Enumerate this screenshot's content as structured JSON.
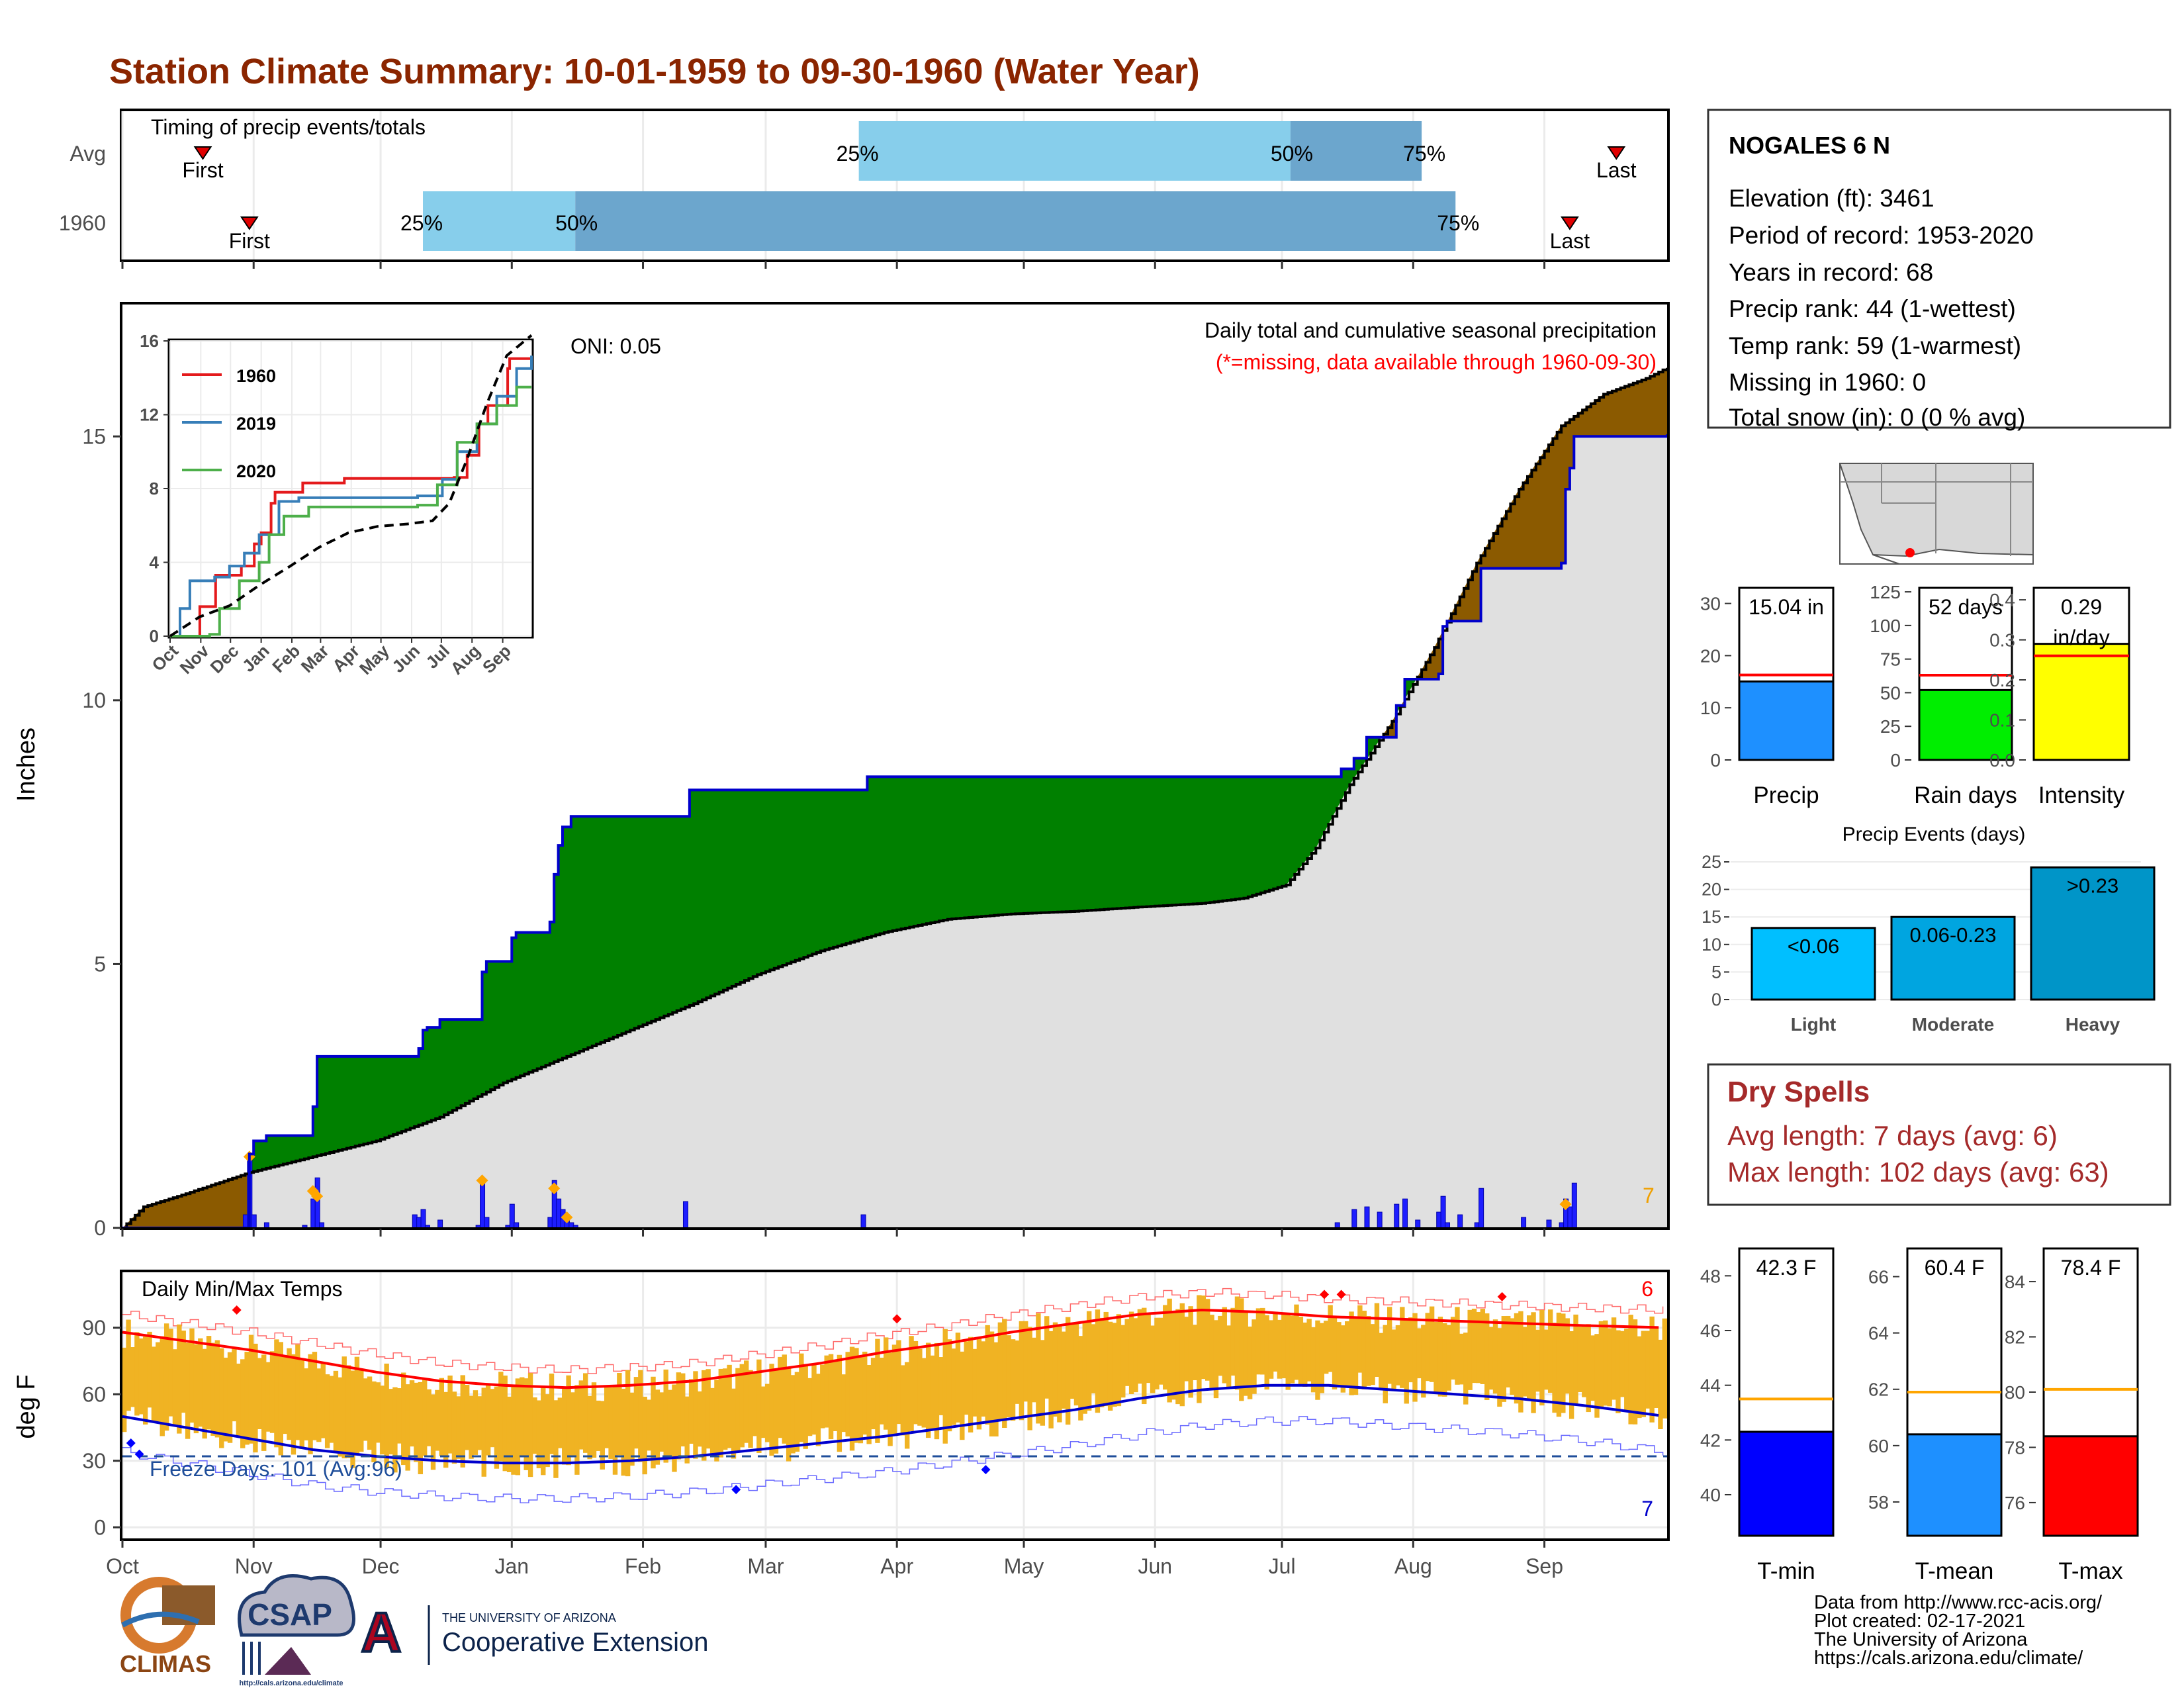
{
  "title": "Station Climate Summary: 10-01-1959 to 09-30-1960 (Water Year)",
  "colors": {
    "title": "#8B2500",
    "above_avg": "#8B5A00",
    "below_avg": "#008000",
    "avg_area": "#E0E0E0",
    "cum_line": "#0000CC",
    "light_blue": "#87CEEB",
    "mid_blue": "#6CA6CD",
    "temp_bar": "#F0B323",
    "tmax_line": "#FF0000",
    "tmin_line": "#0000CC",
    "dry_spell": "#A52A2A"
  },
  "months": [
    "Oct",
    "Nov",
    "Dec",
    "Jan",
    "Feb",
    "Mar",
    "Apr",
    "May",
    "Jun",
    "Jul",
    "Aug",
    "Sep"
  ],
  "timing": {
    "title": "Timing of precip events/totals",
    "rows": [
      {
        "label": "Avg",
        "first_day": 19,
        "last_day": 353,
        "q25_day": 174,
        "q50_day": 276,
        "q75_day": 307,
        "p25": "25%",
        "p50": "50%",
        "p75": "75%",
        "first_label": "First",
        "last_label": "Last"
      },
      {
        "label": "1960",
        "first_day": 30,
        "last_day": 342,
        "q25_day": 71,
        "q50_day": 107,
        "q75_day": 315,
        "p25": "25%",
        "p50": "50%",
        "p75": "75%",
        "first_label": "First",
        "last_label": "Last"
      }
    ]
  },
  "precip_panel": {
    "ylabel": "Inches",
    "yticks": [
      0,
      5,
      10,
      15
    ],
    "ylim": [
      0,
      17.5
    ],
    "note1": "Daily total and cumulative seasonal precipitation",
    "note2": "(*=missing, data available through 1960-09-30)",
    "oni": "ONI: 0.05",
    "corner_count": "7"
  },
  "chart_data": [
    {
      "type": "area",
      "name": "Cumulative precipitation WY1960 vs average",
      "x_unit": "day of water year",
      "cumulative_1960": [
        [
          0,
          0
        ],
        [
          29,
          0
        ],
        [
          30,
          1.4
        ],
        [
          31,
          1.65
        ],
        [
          34,
          1.75
        ],
        [
          44,
          1.75
        ],
        [
          45,
          2.3
        ],
        [
          46,
          3.25
        ],
        [
          69,
          3.25
        ],
        [
          70,
          3.4
        ],
        [
          71,
          3.75
        ],
        [
          72,
          3.8
        ],
        [
          75,
          3.95
        ],
        [
          84,
          3.95
        ],
        [
          85,
          4.85
        ],
        [
          86,
          5.05
        ],
        [
          91,
          5.05
        ],
        [
          92,
          5.5
        ],
        [
          93,
          5.6
        ],
        [
          100,
          5.6
        ],
        [
          101,
          5.8
        ],
        [
          102,
          6.7
        ],
        [
          103,
          7.25
        ],
        [
          104,
          7.6
        ],
        [
          106,
          7.8
        ],
        [
          133,
          7.8
        ],
        [
          134,
          8.3
        ],
        [
          175,
          8.3
        ],
        [
          176,
          8.55
        ],
        [
          287,
          8.55
        ],
        [
          288,
          8.7
        ],
        [
          291,
          8.9
        ],
        [
          294,
          9.3
        ],
        [
          301,
          9.9
        ],
        [
          303,
          10.4
        ],
        [
          311,
          10.5
        ],
        [
          312,
          11.4
        ],
        [
          313,
          11.5
        ],
        [
          320,
          11.5
        ],
        [
          321,
          12.5
        ],
        [
          340,
          12.6
        ],
        [
          341,
          14.0
        ],
        [
          342,
          14.4
        ],
        [
          343,
          15.0
        ],
        [
          365,
          15.04
        ]
      ],
      "cumulative_avg": [
        [
          0,
          0
        ],
        [
          5,
          0.4
        ],
        [
          15,
          0.65
        ],
        [
          30,
          1.05
        ],
        [
          45,
          1.35
        ],
        [
          60,
          1.65
        ],
        [
          75,
          2.1
        ],
        [
          90,
          2.75
        ],
        [
          105,
          3.25
        ],
        [
          120,
          3.75
        ],
        [
          135,
          4.25
        ],
        [
          150,
          4.8
        ],
        [
          165,
          5.25
        ],
        [
          180,
          5.6
        ],
        [
          195,
          5.85
        ],
        [
          210,
          5.95
        ],
        [
          225,
          6.0
        ],
        [
          240,
          6.08
        ],
        [
          255,
          6.15
        ],
        [
          265,
          6.25
        ],
        [
          275,
          6.5
        ],
        [
          282,
          7.2
        ],
        [
          290,
          8.4
        ],
        [
          300,
          9.6
        ],
        [
          310,
          11.0
        ],
        [
          320,
          12.6
        ],
        [
          330,
          14.0
        ],
        [
          340,
          15.2
        ],
        [
          350,
          15.8
        ],
        [
          360,
          16.1
        ],
        [
          365,
          16.3
        ]
      ],
      "daily_1960": [
        [
          29,
          0.25
        ],
        [
          30,
          1.4
        ],
        [
          31,
          0.25
        ],
        [
          34,
          0.1
        ],
        [
          43,
          0.05
        ],
        [
          45,
          0.55
        ],
        [
          46,
          0.95
        ],
        [
          47,
          0.1
        ],
        [
          69,
          0.25
        ],
        [
          70,
          0.2
        ],
        [
          71,
          0.35
        ],
        [
          72,
          0.05
        ],
        [
          75,
          0.15
        ],
        [
          84,
          0.05
        ],
        [
          85,
          0.9
        ],
        [
          86,
          0.2
        ],
        [
          91,
          0.05
        ],
        [
          92,
          0.45
        ],
        [
          93,
          0.1
        ],
        [
          101,
          0.2
        ],
        [
          102,
          0.9
        ],
        [
          103,
          0.55
        ],
        [
          104,
          0.35
        ],
        [
          105,
          0.2
        ],
        [
          106,
          0.1
        ],
        [
          107,
          0.05
        ],
        [
          133,
          0.5
        ],
        [
          175,
          0.25
        ],
        [
          287,
          0.1
        ],
        [
          291,
          0.35
        ],
        [
          294,
          0.4
        ],
        [
          297,
          0.3
        ],
        [
          301,
          0.45
        ],
        [
          303,
          0.55
        ],
        [
          306,
          0.15
        ],
        [
          311,
          0.3
        ],
        [
          312,
          0.6
        ],
        [
          313,
          0.1
        ],
        [
          316,
          0.25
        ],
        [
          320,
          0.1
        ],
        [
          321,
          0.75
        ],
        [
          331,
          0.2
        ],
        [
          337,
          0.15
        ],
        [
          340,
          0.1
        ],
        [
          341,
          0.55
        ],
        [
          342,
          0.4
        ],
        [
          343,
          0.85
        ]
      ],
      "ylim": [
        0,
        17.5
      ]
    },
    {
      "type": "line",
      "name": "Inset cumulative comparison",
      "ylim": [
        0,
        16
      ],
      "yticks": [
        0,
        4,
        8,
        12,
        16
      ],
      "series": [
        {
          "name": "1960",
          "color": "#E41A1C",
          "values": [
            [
              0,
              0
            ],
            [
              30,
              1.6
            ],
            [
              46,
              3.3
            ],
            [
              72,
              3.8
            ],
            [
              85,
              5.0
            ],
            [
              92,
              5.6
            ],
            [
              102,
              7.2
            ],
            [
              106,
              7.8
            ],
            [
              134,
              8.3
            ],
            [
              176,
              8.55
            ],
            [
              287,
              8.6
            ],
            [
              300,
              9.8
            ],
            [
              312,
              11.5
            ],
            [
              321,
              12.5
            ],
            [
              341,
              14.5
            ],
            [
              343,
              15.04
            ],
            [
              365,
              15.04
            ]
          ]
        },
        {
          "name": "2019",
          "color": "#377EB8",
          "values": [
            [
              0,
              0
            ],
            [
              10,
              1.5
            ],
            [
              20,
              3.0
            ],
            [
              45,
              3.2
            ],
            [
              60,
              3.8
            ],
            [
              75,
              4.5
            ],
            [
              90,
              5.5
            ],
            [
              110,
              7.3
            ],
            [
              130,
              7.5
            ],
            [
              250,
              7.6
            ],
            [
              275,
              8.5
            ],
            [
              290,
              10.0
            ],
            [
              310,
              11.5
            ],
            [
              330,
              13.0
            ],
            [
              350,
              14.5
            ],
            [
              365,
              15.2
            ]
          ]
        },
        {
          "name": "2020",
          "color": "#4DAF4A",
          "values": [
            [
              0,
              0
            ],
            [
              40,
              0.1
            ],
            [
              50,
              1.5
            ],
            [
              70,
              3.0
            ],
            [
              90,
              4.0
            ],
            [
              100,
              5.5
            ],
            [
              115,
              6.5
            ],
            [
              140,
              7.0
            ],
            [
              250,
              7.1
            ],
            [
              270,
              8.2
            ],
            [
              290,
              10.5
            ],
            [
              310,
              11.5
            ],
            [
              330,
              12.5
            ],
            [
              350,
              13.5
            ],
            [
              365,
              13.5
            ]
          ]
        },
        {
          "name": "Avg",
          "color": "#000000",
          "values": [
            [
              0,
              0
            ],
            [
              30,
              1.05
            ],
            [
              60,
              1.65
            ],
            [
              90,
              2.75
            ],
            [
              120,
              3.75
            ],
            [
              150,
              4.8
            ],
            [
              180,
              5.6
            ],
            [
              210,
              5.95
            ],
            [
              240,
              6.08
            ],
            [
              265,
              6.25
            ],
            [
              282,
              7.2
            ],
            [
              300,
              9.6
            ],
            [
              320,
              12.6
            ],
            [
              340,
              15.2
            ],
            [
              365,
              16.3
            ]
          ]
        }
      ]
    },
    {
      "type": "bar",
      "name": "Daily Min/Max Temps",
      "title": "Daily Min/Max Temps",
      "yticks": [
        0,
        30,
        60,
        90
      ],
      "ylim": [
        -5,
        115
      ],
      "freeze_label": "Freeze Days: 101 (Avg:96)",
      "freeze_threshold": 32,
      "record_high_count": "6",
      "record_low_count": "7",
      "avg_max_curve": [
        [
          0,
          88
        ],
        [
          15,
          84
        ],
        [
          30,
          80
        ],
        [
          45,
          75
        ],
        [
          60,
          70
        ],
        [
          75,
          66
        ],
        [
          90,
          64
        ],
        [
          105,
          63
        ],
        [
          120,
          64
        ],
        [
          135,
          66
        ],
        [
          150,
          70
        ],
        [
          165,
          74
        ],
        [
          180,
          79
        ],
        [
          195,
          83
        ],
        [
          210,
          88
        ],
        [
          225,
          92
        ],
        [
          240,
          96
        ],
        [
          255,
          98
        ],
        [
          270,
          97
        ],
        [
          285,
          95
        ],
        [
          300,
          94
        ],
        [
          315,
          93
        ],
        [
          330,
          92
        ],
        [
          345,
          91
        ],
        [
          365,
          90
        ]
      ],
      "avg_min_curve": [
        [
          0,
          50
        ],
        [
          15,
          45
        ],
        [
          30,
          40
        ],
        [
          45,
          35
        ],
        [
          60,
          32
        ],
        [
          75,
          30
        ],
        [
          90,
          29
        ],
        [
          105,
          29
        ],
        [
          120,
          30
        ],
        [
          135,
          32
        ],
        [
          150,
          35
        ],
        [
          165,
          38
        ],
        [
          180,
          41
        ],
        [
          195,
          45
        ],
        [
          210,
          49
        ],
        [
          225,
          53
        ],
        [
          240,
          58
        ],
        [
          255,
          62
        ],
        [
          270,
          64
        ],
        [
          285,
          64
        ],
        [
          300,
          62
        ],
        [
          315,
          60
        ],
        [
          330,
          58
        ],
        [
          345,
          55
        ],
        [
          365,
          50
        ]
      ]
    },
    {
      "type": "bar",
      "name": "Season totals",
      "categories": [
        "Precip",
        "Rain days",
        "Intensity"
      ],
      "values": [
        15.04,
        52,
        0.29
      ],
      "averages": [
        16.3,
        63,
        0.26
      ],
      "labels": [
        "15.04 in",
        "52 days",
        "0.29 in/day"
      ],
      "ylims": [
        [
          0,
          33
        ],
        [
          0,
          128
        ],
        [
          0,
          0.43
        ]
      ],
      "yticks": [
        [
          0,
          10,
          20,
          30
        ],
        [
          0,
          25,
          50,
          75,
          100,
          125
        ],
        [
          0.0,
          0.1,
          0.2,
          0.3,
          0.4
        ]
      ],
      "bar_colors": [
        "#1E90FF",
        "#00EE00",
        "#FFFF00"
      ]
    },
    {
      "type": "bar",
      "name": "Precip Events (days)",
      "title": "Precip Events (days)",
      "categories": [
        "Light",
        "Moderate",
        "Heavy"
      ],
      "values": [
        13,
        15,
        24
      ],
      "bar_labels": [
        "<0.06",
        "0.06-0.23",
        ">0.23"
      ],
      "bar_colors": [
        "#00BFFF",
        "#00A5E0",
        "#0095C8"
      ],
      "ylim": [
        0,
        25
      ],
      "yticks": [
        0,
        5,
        10,
        15,
        20,
        25
      ]
    },
    {
      "type": "bar",
      "name": "Temperature means",
      "categories": [
        "T-min",
        "T-mean",
        "T-max"
      ],
      "values": [
        42.3,
        60.4,
        78.4
      ],
      "averages": [
        43.5,
        61.9,
        80.1
      ],
      "labels": [
        "42.3 F",
        "60.4 F",
        "78.4 F"
      ],
      "ylims": [
        [
          38.5,
          49
        ],
        [
          56.8,
          67
        ],
        [
          74.8,
          85.2
        ]
      ],
      "yticks": [
        [
          40,
          42,
          44,
          46,
          48
        ],
        [
          58,
          60,
          62,
          64,
          66
        ],
        [
          76,
          78,
          80,
          82,
          84
        ]
      ],
      "bar_colors": [
        "#0000FF",
        "#1E90FF",
        "#FF0000"
      ]
    }
  ],
  "station": {
    "name": "NOGALES 6 N",
    "lines": [
      "Elevation (ft): 3461",
      "Period of record: 1953-2020",
      "Years in record: 68",
      "Precip rank: 44 (1-wettest)",
      "Temp rank: 59 (1-warmest)",
      "Missing in 1960: 0",
      "Total snow (in): 0 (0 % avg)"
    ]
  },
  "dry_spells": {
    "title": "Dry Spells",
    "avg": "Avg length: 7 days (avg: 6)",
    "max": "Max length: 102 days (avg: 63)"
  },
  "temp_panel": {
    "ylabel": "deg F"
  },
  "footer": {
    "lines": [
      "Data from http://www.rcc-acis.org/",
      "Plot created: 02-17-2021",
      "The University of Arizona",
      "https://cals.arizona.edu/climate/"
    ]
  },
  "logos": {
    "climas": "CLIMAS",
    "csap": "CSAP",
    "csap_url": "http://cals.arizona.edu/climate",
    "ua_small": "THE UNIVERSITY OF ARIZONA",
    "ua_large": "Cooperative Extension",
    "ua_letter": "A"
  }
}
